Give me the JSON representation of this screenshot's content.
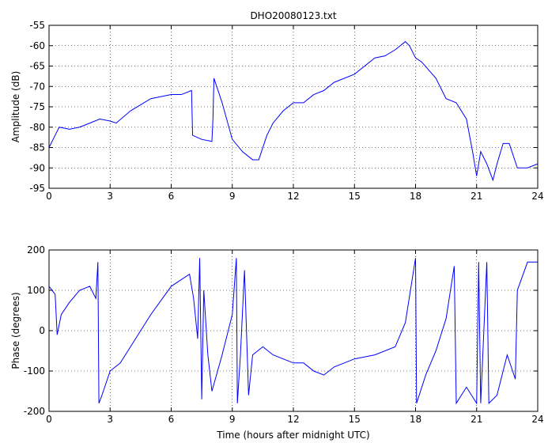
{
  "chart_data": [
    {
      "type": "line",
      "title": "DHO20080123.txt",
      "y_label": "Amplitude (dB)",
      "xlim": [
        0,
        24
      ],
      "xticks": [
        0,
        3,
        6,
        9,
        12,
        15,
        18,
        21,
        24
      ],
      "ylim": [
        -95,
        -55
      ],
      "yticks": [
        -95,
        -90,
        -85,
        -80,
        -75,
        -70,
        -65,
        -60,
        -55
      ],
      "grid": true,
      "x": [
        0,
        0.3,
        0.5,
        1,
        1.5,
        2,
        2.5,
        3,
        3.3,
        4,
        5,
        6,
        6.5,
        7,
        7.05,
        7.5,
        8,
        8.05,
        8.1,
        8.5,
        9,
        9.5,
        10,
        10.3,
        10.7,
        11,
        11.5,
        12,
        12.5,
        13,
        13.5,
        14,
        15,
        15.5,
        16,
        16.5,
        17,
        17.5,
        17.7,
        18,
        18.3,
        19,
        19.5,
        20,
        20.5,
        20.8,
        21,
        21.2,
        21.5,
        21.8,
        22,
        22.3,
        22.6,
        23,
        23.5,
        24
      ],
      "series": [
        {
          "name": "Amplitude",
          "color": "#0000ff",
          "values": [
            -85,
            -82,
            -80,
            -80.5,
            -80,
            -79,
            -78,
            -78.5,
            -79,
            -76,
            -73,
            -72,
            -72,
            -71,
            -82,
            -83,
            -83.5,
            -78,
            -68,
            -74,
            -83,
            -86,
            -88,
            -88,
            -82,
            -79,
            -76,
            -74,
            -74,
            -72,
            -71,
            -69,
            -67,
            -65,
            -63,
            -62.5,
            -61,
            -59,
            -60,
            -63,
            -64,
            -68,
            -73,
            -74,
            -78,
            -86,
            -92,
            -86,
            -89,
            -93,
            -89,
            -84,
            -84,
            -90,
            -90,
            -89
          ]
        }
      ]
    },
    {
      "type": "line",
      "x_label": "Time (hours after midnight UTC)",
      "y_label": "Phase (degrees)",
      "xlim": [
        0,
        24
      ],
      "xticks": [
        0,
        3,
        6,
        9,
        12,
        15,
        18,
        21,
        24
      ],
      "ylim": [
        -200,
        200
      ],
      "yticks": [
        -200,
        -100,
        0,
        100,
        200
      ],
      "grid": true,
      "x": [
        0,
        0.3,
        0.4,
        0.6,
        1,
        1.5,
        2,
        2.3,
        2.4,
        2.45,
        2.6,
        3,
        3.5,
        4,
        5,
        6,
        6.9,
        7.1,
        7.3,
        7.4,
        7.5,
        7.6,
        7.8,
        8,
        8.5,
        9,
        9.2,
        9.25,
        9.4,
        9.6,
        9.8,
        10,
        10.5,
        11,
        12,
        12.5,
        13,
        13.5,
        14,
        15,
        16,
        17,
        17.5,
        18,
        18.05,
        18.5,
        19,
        19.5,
        19.9,
        20,
        20.5,
        21,
        21.1,
        21.2,
        21.5,
        21.6,
        22,
        22.5,
        22.9,
        23,
        23.5,
        24
      ],
      "series": [
        {
          "name": "Phase",
          "color": "#0000ff",
          "values": [
            110,
            90,
            -10,
            40,
            70,
            100,
            110,
            80,
            170,
            -180,
            -160,
            -100,
            -80,
            -40,
            40,
            110,
            140,
            80,
            -20,
            180,
            -170,
            100,
            -60,
            -150,
            -60,
            40,
            180,
            -180,
            -60,
            150,
            -160,
            -60,
            -40,
            -60,
            -80,
            -80,
            -100,
            -110,
            -90,
            -70,
            -60,
            -40,
            20,
            180,
            -180,
            -110,
            -50,
            30,
            160,
            -180,
            -140,
            -180,
            170,
            -180,
            170,
            -180,
            -160,
            -60,
            -120,
            100,
            170,
            170
          ]
        }
      ]
    }
  ]
}
